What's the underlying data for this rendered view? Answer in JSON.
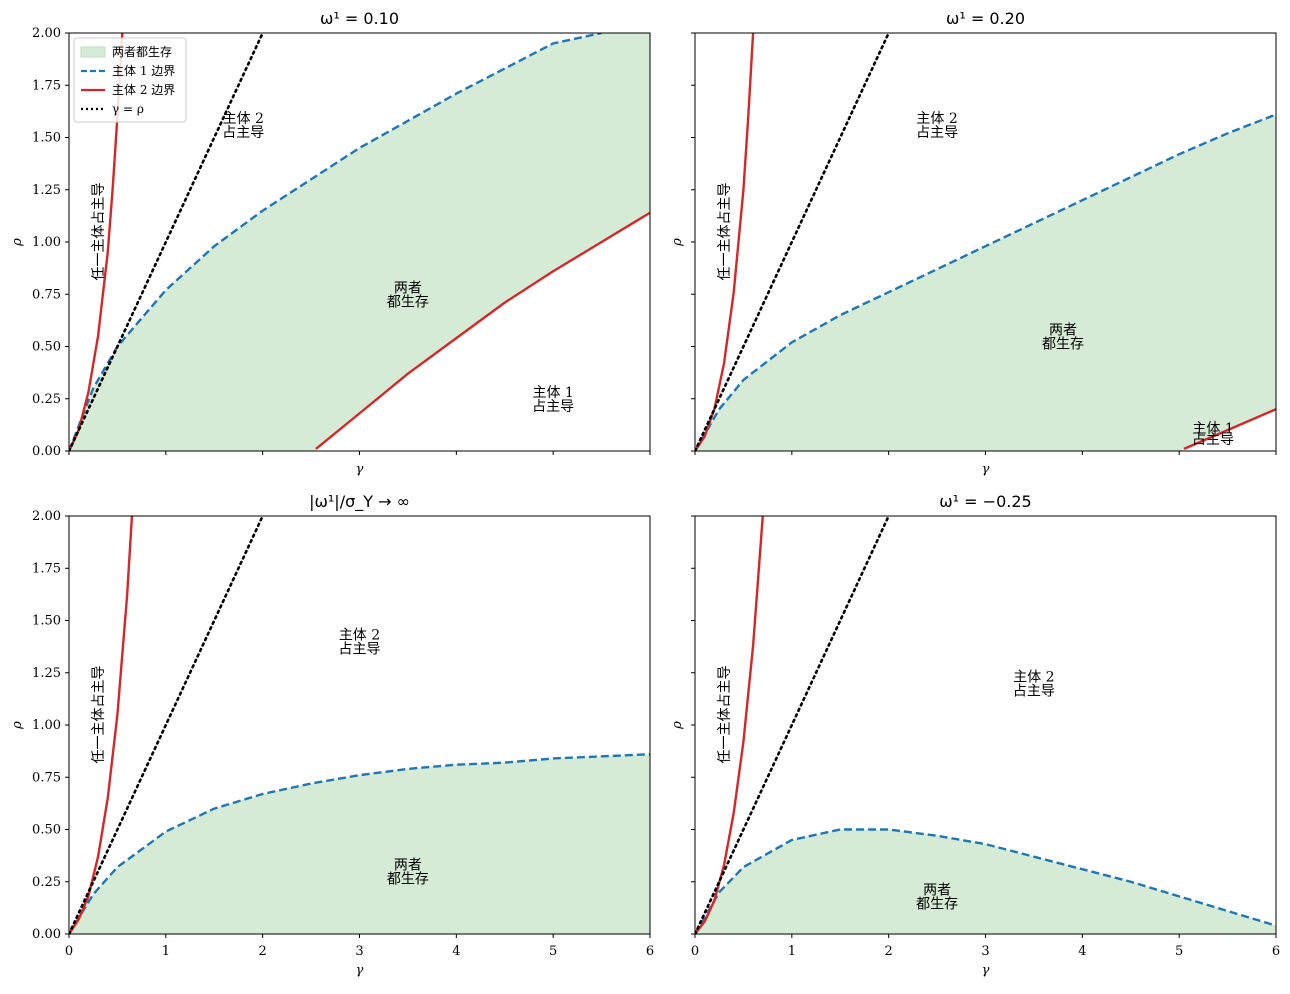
{
  "chart_data": [
    {
      "type": "line",
      "title": "ω¹ = 0.10",
      "xlabel": "γ",
      "ylabel": "ρ",
      "xlim": [
        0,
        6
      ],
      "ylim": [
        0,
        2
      ],
      "show_x_ticklabels": false,
      "show_y_ticklabels": true,
      "legend": {
        "placement": "top-left",
        "entries": [
          "两者都生存",
          "主体 1 边界",
          "主体 2 边界",
          "γ = ρ"
        ]
      },
      "series": [
        {
          "name": "主体 1 边界",
          "style": "dashed",
          "color": "#1f77b4",
          "x": [
            0,
            0.25,
            0.5,
            1,
            1.5,
            2,
            2.5,
            3,
            3.5,
            4,
            4.5,
            5,
            5.5
          ],
          "y": [
            0,
            0.3,
            0.5,
            0.77,
            0.98,
            1.15,
            1.3,
            1.45,
            1.58,
            1.71,
            1.83,
            1.95,
            2.0
          ]
        },
        {
          "name": "主体 2 边界",
          "style": "solid",
          "color": "#d62728",
          "x": [
            0,
            0.1,
            0.2,
            0.3,
            0.4,
            0.45,
            0.5,
            0.55
          ],
          "y": [
            0,
            0.1,
            0.28,
            0.55,
            0.95,
            1.25,
            1.6,
            2.0
          ]
        },
        {
          "name": "主体 2 边界",
          "style": "solid",
          "color": "#d62728",
          "x": [
            2.55,
            3,
            3.5,
            4,
            4.5,
            5,
            5.5,
            6
          ],
          "y": [
            0.01,
            0.18,
            0.37,
            0.54,
            0.71,
            0.86,
            1.0,
            1.14
          ]
        },
        {
          "name": "γ = ρ",
          "style": "dotted",
          "color": "#000000",
          "x": [
            0,
            2.0
          ],
          "y": [
            0,
            2.0
          ]
        }
      ],
      "fill": {
        "label": "两者都生存",
        "color": "#d6ebd6",
        "upper": [
          [
            0,
            0
          ],
          [
            0.25,
            0.3
          ],
          [
            0.5,
            0.5
          ],
          [
            1,
            0.77
          ],
          [
            1.5,
            0.98
          ],
          [
            2,
            1.15
          ],
          [
            2.5,
            1.3
          ],
          [
            3,
            1.45
          ],
          [
            3.5,
            1.58
          ],
          [
            4,
            1.71
          ],
          [
            4.5,
            1.83
          ],
          [
            5,
            1.95
          ],
          [
            5.5,
            2.0
          ],
          [
            6,
            2.0
          ]
        ],
        "lower": [
          [
            6,
            1.14
          ],
          [
            5.5,
            1.0
          ],
          [
            5,
            0.86
          ],
          [
            4.5,
            0.71
          ],
          [
            4,
            0.54
          ],
          [
            3.5,
            0.37
          ],
          [
            3,
            0.18
          ],
          [
            2.55,
            0.01
          ],
          [
            2.55,
            0
          ],
          [
            0,
            0
          ]
        ]
      },
      "annotations": [
        {
          "lines": [
            "主体 2",
            "占主导"
          ],
          "x": 1.8,
          "y": 1.56
        },
        {
          "lines": [
            "两者",
            "都生存"
          ],
          "x": 3.5,
          "y": 0.75
        },
        {
          "lines": [
            "主体 1",
            "占主导"
          ],
          "x": 5.0,
          "y": 0.25
        },
        {
          "lines": [
            "任一主体占主导"
          ],
          "x": 0.3,
          "y": 1.05,
          "rotate": true
        }
      ]
    },
    {
      "type": "line",
      "title": "ω¹ = 0.20",
      "xlabel": "γ",
      "ylabel": "ρ",
      "xlim": [
        0,
        6
      ],
      "ylim": [
        0,
        2
      ],
      "show_x_ticklabels": false,
      "show_y_ticklabels": false,
      "series": [
        {
          "name": "主体 1 边界",
          "style": "dashed",
          "color": "#1f77b4",
          "x": [
            0,
            0.25,
            0.5,
            1,
            1.5,
            2,
            2.5,
            3,
            3.5,
            4,
            4.5,
            5,
            5.5,
            6
          ],
          "y": [
            0,
            0.2,
            0.34,
            0.52,
            0.65,
            0.76,
            0.87,
            0.98,
            1.09,
            1.2,
            1.31,
            1.42,
            1.52,
            1.61
          ]
        },
        {
          "name": "主体 2 边界",
          "style": "solid",
          "color": "#d62728",
          "x": [
            0,
            0.1,
            0.2,
            0.3,
            0.4,
            0.5,
            0.55,
            0.6
          ],
          "y": [
            0,
            0.07,
            0.2,
            0.42,
            0.76,
            1.25,
            1.6,
            2.0
          ]
        },
        {
          "name": "主体 2 边界",
          "style": "solid",
          "color": "#d62728",
          "x": [
            5.05,
            5.5,
            6
          ],
          "y": [
            0.01,
            0.1,
            0.2
          ]
        },
        {
          "name": "γ = ρ",
          "style": "dotted",
          "color": "#000000",
          "x": [
            0,
            2.0
          ],
          "y": [
            0,
            2.0
          ]
        }
      ],
      "fill": {
        "color": "#d6ebd6",
        "upper": [
          [
            0,
            0
          ],
          [
            0.25,
            0.2
          ],
          [
            0.5,
            0.34
          ],
          [
            1,
            0.52
          ],
          [
            1.5,
            0.65
          ],
          [
            2,
            0.76
          ],
          [
            2.5,
            0.87
          ],
          [
            3,
            0.98
          ],
          [
            3.5,
            1.09
          ],
          [
            4,
            1.2
          ],
          [
            4.5,
            1.31
          ],
          [
            5,
            1.42
          ],
          [
            5.5,
            1.52
          ],
          [
            6,
            1.61
          ]
        ],
        "lower": [
          [
            6,
            0.2
          ],
          [
            5.5,
            0.1
          ],
          [
            5.05,
            0.01
          ],
          [
            5.05,
            0
          ],
          [
            0,
            0
          ]
        ]
      },
      "annotations": [
        {
          "lines": [
            "主体 2",
            "占主导"
          ],
          "x": 2.5,
          "y": 1.56
        },
        {
          "lines": [
            "两者",
            "都生存"
          ],
          "x": 3.8,
          "y": 0.55
        },
        {
          "lines": [
            "主体 1",
            "占主导"
          ],
          "x": 5.35,
          "y": 0.08,
          "small": true
        },
        {
          "lines": [
            "任一主体占主导"
          ],
          "x": 0.3,
          "y": 1.05,
          "rotate": true
        }
      ]
    },
    {
      "type": "line",
      "title": "|ω¹|/σ_Y → ∞",
      "xlabel": "γ",
      "ylabel": "ρ",
      "xlim": [
        0,
        6
      ],
      "ylim": [
        0,
        2
      ],
      "show_x_ticklabels": true,
      "show_y_ticklabels": true,
      "xticks": [
        0,
        1,
        2,
        3,
        4,
        5,
        6
      ],
      "series": [
        {
          "name": "主体 1 边界",
          "style": "dashed",
          "color": "#1f77b4",
          "x": [
            0,
            0.25,
            0.5,
            1,
            1.5,
            2,
            2.5,
            3,
            3.5,
            4,
            4.5,
            5,
            5.5,
            6
          ],
          "y": [
            0,
            0.19,
            0.32,
            0.49,
            0.6,
            0.67,
            0.72,
            0.76,
            0.79,
            0.81,
            0.82,
            0.84,
            0.85,
            0.86
          ]
        },
        {
          "name": "主体 2 边界",
          "style": "solid",
          "color": "#d62728",
          "x": [
            0,
            0.1,
            0.2,
            0.3,
            0.4,
            0.5,
            0.6,
            0.65
          ],
          "y": [
            0,
            0.07,
            0.18,
            0.37,
            0.65,
            1.05,
            1.62,
            2.0
          ]
        },
        {
          "name": "γ = ρ",
          "style": "dotted",
          "color": "#000000",
          "x": [
            0,
            2.0
          ],
          "y": [
            0,
            2.0
          ]
        }
      ],
      "fill": {
        "color": "#d6ebd6",
        "upper": [
          [
            0,
            0
          ],
          [
            0.25,
            0.19
          ],
          [
            0.5,
            0.32
          ],
          [
            1,
            0.49
          ],
          [
            1.5,
            0.6
          ],
          [
            2,
            0.67
          ],
          [
            2.5,
            0.72
          ],
          [
            3,
            0.76
          ],
          [
            3.5,
            0.79
          ],
          [
            4,
            0.81
          ],
          [
            4.5,
            0.82
          ],
          [
            5,
            0.84
          ],
          [
            5.5,
            0.85
          ],
          [
            6,
            0.86
          ]
        ],
        "lower": [
          [
            6,
            0
          ],
          [
            0,
            0
          ]
        ]
      },
      "annotations": [
        {
          "lines": [
            "主体 2",
            "占主导"
          ],
          "x": 3.0,
          "y": 1.4
        },
        {
          "lines": [
            "两者",
            "都生存"
          ],
          "x": 3.5,
          "y": 0.3
        },
        {
          "lines": [
            "任一主体占主导"
          ],
          "x": 0.3,
          "y": 1.05,
          "rotate": true
        }
      ]
    },
    {
      "type": "line",
      "title": "ω¹ = −0.25",
      "xlabel": "γ",
      "ylabel": "ρ",
      "xlim": [
        0,
        6
      ],
      "ylim": [
        0,
        2
      ],
      "show_x_ticklabels": true,
      "show_y_ticklabels": false,
      "xticks": [
        0,
        1,
        2,
        3,
        4,
        5,
        6
      ],
      "series": [
        {
          "name": "主体 1 边界",
          "style": "dashed",
          "color": "#1f77b4",
          "x": [
            0,
            0.25,
            0.5,
            1,
            1.5,
            2,
            2.5,
            3,
            3.5,
            4,
            4.5,
            5,
            5.5,
            6
          ],
          "y": [
            0,
            0.2,
            0.32,
            0.45,
            0.5,
            0.5,
            0.47,
            0.43,
            0.37,
            0.31,
            0.25,
            0.18,
            0.11,
            0.04
          ]
        },
        {
          "name": "主体 2 边界",
          "style": "solid",
          "color": "#d62728",
          "x": [
            0,
            0.1,
            0.2,
            0.3,
            0.4,
            0.5,
            0.6,
            0.7
          ],
          "y": [
            0,
            0.06,
            0.16,
            0.33,
            0.58,
            0.92,
            1.38,
            2.0
          ]
        },
        {
          "name": "γ = ρ",
          "style": "dotted",
          "color": "#000000",
          "x": [
            0,
            2.0
          ],
          "y": [
            0,
            2.0
          ]
        }
      ],
      "fill": {
        "color": "#d6ebd6",
        "upper": [
          [
            0,
            0
          ],
          [
            0.25,
            0.2
          ],
          [
            0.5,
            0.32
          ],
          [
            1,
            0.45
          ],
          [
            1.5,
            0.5
          ],
          [
            2,
            0.5
          ],
          [
            2.5,
            0.47
          ],
          [
            3,
            0.43
          ],
          [
            3.5,
            0.37
          ],
          [
            4,
            0.31
          ],
          [
            4.5,
            0.25
          ],
          [
            5,
            0.18
          ],
          [
            5.5,
            0.11
          ],
          [
            6,
            0.04
          ]
        ],
        "lower": [
          [
            6,
            0
          ],
          [
            0,
            0
          ]
        ]
      },
      "annotations": [
        {
          "lines": [
            "主体 2",
            "占主导"
          ],
          "x": 3.5,
          "y": 1.2
        },
        {
          "lines": [
            "两者",
            "都生存"
          ],
          "x": 2.5,
          "y": 0.18
        },
        {
          "lines": [
            "任一主体占主导"
          ],
          "x": 0.3,
          "y": 1.05,
          "rotate": true
        }
      ]
    }
  ],
  "yticks": [
    "0.00",
    "0.25",
    "0.50",
    "0.75",
    "1.00",
    "1.25",
    "1.50",
    "1.75",
    "2.00"
  ]
}
